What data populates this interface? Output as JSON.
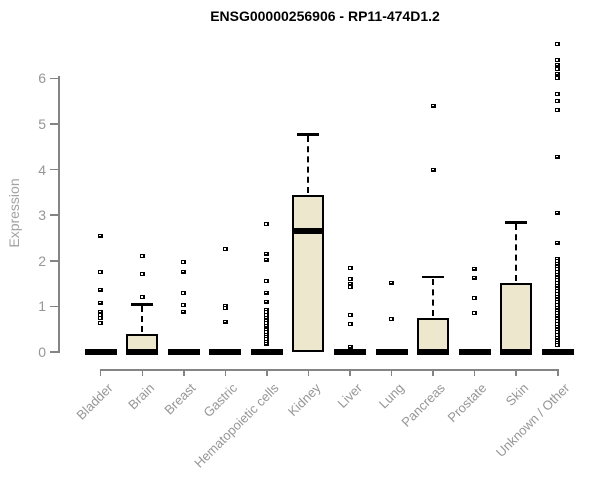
{
  "chart_data": {
    "type": "boxplot",
    "title": "ENSG00000256906 - RP11-474D1.2",
    "xlabel": "",
    "ylabel": "Expression",
    "ylim": [
      0,
      6.9
    ],
    "yticks": [
      0,
      1,
      2,
      3,
      4,
      5,
      6
    ],
    "grid": false,
    "legend": null,
    "colors": {
      "box_fill": "#ece7cd",
      "box_border": "#000000",
      "median": "#000000",
      "axis": "#848484",
      "tick_text": "#969696",
      "title_text": "#000000"
    },
    "categories": [
      "Bladder",
      "Brain",
      "Breast",
      "Gastric",
      "Hematopoietic cells",
      "Kidney",
      "Liver",
      "Lung",
      "Pancreas",
      "Prostate",
      "Skin",
      "Unknown / Other"
    ],
    "boxes": [
      {
        "category": "Bladder",
        "whisker_low": 0,
        "q1": 0,
        "median": 0,
        "q3": 0,
        "whisker_high": 0,
        "outliers": [
          2.55,
          1.75,
          1.36,
          1.08,
          0.88,
          0.81,
          0.74,
          0.63
        ]
      },
      {
        "category": "Brain",
        "whisker_low": 0,
        "q1": 0,
        "median": 0,
        "q3": 0.4,
        "whisker_high": 1.05,
        "outliers": [
          2.1,
          1.7,
          1.2
        ]
      },
      {
        "category": "Breast",
        "whisker_low": 0,
        "q1": 0,
        "median": 0,
        "q3": 0,
        "whisker_high": 0,
        "outliers": [
          1.97,
          1.76,
          1.29,
          1.03,
          0.88
        ]
      },
      {
        "category": "Gastric",
        "whisker_low": 0,
        "q1": 0,
        "median": 0,
        "q3": 0,
        "whisker_high": 0,
        "outliers": [
          2.25,
          1.0,
          0.96,
          0.66
        ]
      },
      {
        "category": "Hematopoietic cells",
        "whisker_low": 0,
        "q1": 0,
        "median": 0,
        "q3": 0,
        "whisker_high": 0,
        "outliers": [
          2.8,
          2.15,
          2.02,
          1.55,
          1.3,
          1.1,
          0.93,
          0.87,
          0.81,
          0.75,
          0.69,
          0.63,
          0.58,
          0.48,
          0.43,
          0.38,
          0.33,
          0.28,
          0.23,
          0.18
        ]
      },
      {
        "category": "Kidney",
        "whisker_low": 0,
        "q1": 0,
        "median": 2.65,
        "q3": 3.45,
        "whisker_high": 4.78,
        "outliers": []
      },
      {
        "category": "Liver",
        "whisker_low": 0,
        "q1": 0,
        "median": 0,
        "q3": 0,
        "whisker_high": 0,
        "outliers": [
          1.84,
          1.6,
          1.5,
          1.42,
          0.81,
          0.61,
          0.12
        ]
      },
      {
        "category": "Lung",
        "whisker_low": 0,
        "q1": 0,
        "median": 0,
        "q3": 0,
        "whisker_high": 0,
        "outliers": [
          1.52,
          0.72
        ]
      },
      {
        "category": "Pancreas",
        "whisker_low": 0,
        "q1": 0,
        "median": 0,
        "q3": 0.75,
        "whisker_high": 1.65,
        "outliers": [
          5.4,
          4.0
        ]
      },
      {
        "category": "Prostate",
        "whisker_low": 0,
        "q1": 0,
        "median": 0,
        "q3": 0,
        "whisker_high": 0,
        "outliers": [
          1.83,
          1.63,
          1.18,
          0.85
        ]
      },
      {
        "category": "Skin",
        "whisker_low": 0,
        "q1": 0,
        "median": 0,
        "q3": 1.52,
        "whisker_high": 2.85,
        "outliers": []
      },
      {
        "category": "Unknown / Other",
        "whisker_low": 0,
        "q1": 0,
        "median": 0,
        "q3": 0,
        "whisker_high": 0,
        "outliers": [
          6.75,
          6.4,
          6.3,
          6.2,
          6.1,
          6.0,
          5.65,
          5.5,
          5.3,
          4.28,
          3.05,
          2.4,
          2.05,
          1.99,
          1.93,
          1.87,
          1.81,
          1.75,
          1.69,
          1.63,
          1.57,
          1.51,
          1.45,
          1.39,
          1.33,
          1.27,
          1.21,
          1.15,
          1.09,
          1.03,
          0.97,
          0.91,
          0.85,
          0.79,
          0.73,
          0.67,
          0.61,
          0.55,
          0.49,
          0.43,
          0.37,
          0.31,
          0.25,
          0.19,
          0.15
        ]
      }
    ]
  }
}
